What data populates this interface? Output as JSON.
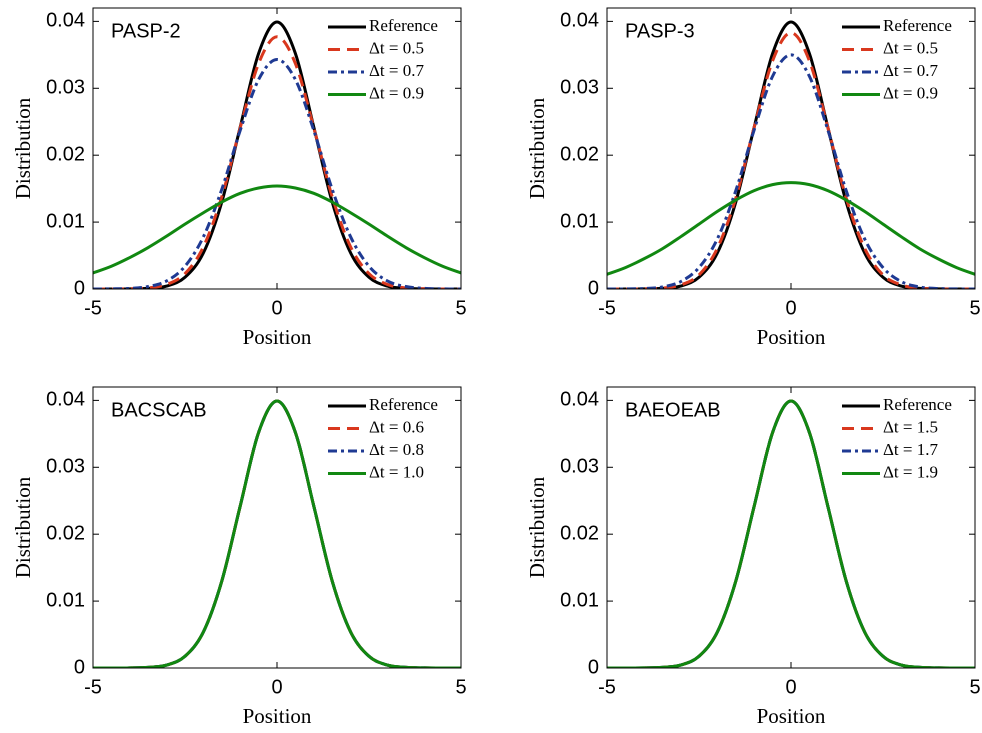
{
  "chart_data": [
    {
      "type": "line",
      "title": "PASP-2",
      "xlabel": "Position",
      "ylabel": "Distribution",
      "x": [
        -5,
        -4.5,
        -4,
        -3.5,
        -3,
        -2.5,
        -2,
        -1.5,
        -1,
        -0.5,
        0,
        0.5,
        1,
        1.5,
        2,
        2.5,
        3,
        3.5,
        4,
        4.5,
        5
      ],
      "xlim": [
        -5,
        5
      ],
      "ylim": [
        0,
        0.042
      ],
      "xticks": [
        -5,
        0,
        5
      ],
      "yticks": [
        0,
        0.01,
        0.02,
        0.03,
        0.04
      ],
      "series": [
        {
          "name": "Reference",
          "color": "#000000",
          "values": [
            0,
            0,
            1e-05,
            9e-05,
            0.00044,
            0.00175,
            0.0054,
            0.013,
            0.0242,
            0.0352,
            0.0399,
            0.0352,
            0.0242,
            0.013,
            0.0054,
            0.00175,
            0.00044,
            9e-05,
            1e-05,
            0,
            0
          ]
        },
        {
          "name": "Δt = 0.5",
          "color": "#d9381e",
          "values": [
            0,
            0,
            3e-05,
            0.00016,
            0.00068,
            0.0023,
            0.0063,
            0.0138,
            0.0241,
            0.0337,
            0.0377,
            0.0337,
            0.0241,
            0.0138,
            0.0063,
            0.0023,
            0.00068,
            0.00016,
            3e-05,
            0,
            0
          ]
        },
        {
          "name": "Δt = 0.7",
          "color": "#1f3a93",
          "values": [
            0,
            2e-05,
            9e-05,
            0.00037,
            0.0012,
            0.0034,
            0.0078,
            0.0149,
            0.0237,
            0.0313,
            0.0343,
            0.0313,
            0.0237,
            0.0149,
            0.0078,
            0.0034,
            0.0012,
            0.00037,
            9e-05,
            2e-05,
            0
          ]
        },
        {
          "name": "Δt = 0.9",
          "color": "#118811",
          "values": [
            0.0024,
            0.0034,
            0.0047,
            0.0062,
            0.0079,
            0.0097,
            0.0114,
            0.013,
            0.0143,
            0.0151,
            0.0154,
            0.0151,
            0.0143,
            0.013,
            0.0114,
            0.0097,
            0.0079,
            0.0062,
            0.0047,
            0.0034,
            0.0024
          ]
        }
      ]
    },
    {
      "type": "line",
      "title": "PASP-3",
      "xlabel": "Position",
      "ylabel": "Distribution",
      "x": [
        -5,
        -4.5,
        -4,
        -3.5,
        -3,
        -2.5,
        -2,
        -1.5,
        -1,
        -0.5,
        0,
        0.5,
        1,
        1.5,
        2,
        2.5,
        3,
        3.5,
        4,
        4.5,
        5
      ],
      "xlim": [
        -5,
        5
      ],
      "ylim": [
        0,
        0.042
      ],
      "xticks": [
        -5,
        0,
        5
      ],
      "yticks": [
        0,
        0.01,
        0.02,
        0.03,
        0.04
      ],
      "series": [
        {
          "name": "Reference",
          "color": "#000000",
          "values": [
            0,
            0,
            1e-05,
            9e-05,
            0.00044,
            0.00175,
            0.0054,
            0.013,
            0.0242,
            0.0352,
            0.0399,
            0.0352,
            0.0242,
            0.013,
            0.0054,
            0.00175,
            0.00044,
            9e-05,
            1e-05,
            0,
            0
          ]
        },
        {
          "name": "Δt = 0.5",
          "color": "#d9381e",
          "values": [
            0,
            0,
            2e-05,
            0.00013,
            0.0006,
            0.0021,
            0.0061,
            0.0136,
            0.0242,
            0.0341,
            0.0383,
            0.0341,
            0.0242,
            0.0136,
            0.0061,
            0.0021,
            0.0006,
            0.00013,
            2e-05,
            0,
            0
          ]
        },
        {
          "name": "Δt = 0.7",
          "color": "#1f3a93",
          "values": [
            0,
            1e-05,
            7e-05,
            0.0003,
            0.0011,
            0.0032,
            0.0075,
            0.0147,
            0.0238,
            0.0318,
            0.035,
            0.0318,
            0.0238,
            0.0147,
            0.0075,
            0.0032,
            0.0011,
            0.0003,
            7e-05,
            1e-05,
            0
          ]
        },
        {
          "name": "Δt = 0.9",
          "color": "#118811",
          "values": [
            0.0022,
            0.0032,
            0.0045,
            0.006,
            0.0078,
            0.0097,
            0.0116,
            0.0133,
            0.0147,
            0.0156,
            0.0159,
            0.0156,
            0.0147,
            0.0133,
            0.0116,
            0.0097,
            0.0078,
            0.006,
            0.0045,
            0.0032,
            0.0022
          ]
        }
      ]
    },
    {
      "type": "line",
      "title": "BACSCAB",
      "xlabel": "Position",
      "ylabel": "Distribution",
      "x": [
        -5,
        -4.5,
        -4,
        -3.5,
        -3,
        -2.5,
        -2,
        -1.5,
        -1,
        -0.5,
        0,
        0.5,
        1,
        1.5,
        2,
        2.5,
        3,
        3.5,
        4,
        4.5,
        5
      ],
      "xlim": [
        -5,
        5
      ],
      "ylim": [
        0,
        0.042
      ],
      "xticks": [
        -5,
        0,
        5
      ],
      "yticks": [
        0,
        0.01,
        0.02,
        0.03,
        0.04
      ],
      "series": [
        {
          "name": "Reference",
          "color": "#000000",
          "values": [
            0,
            0,
            1e-05,
            9e-05,
            0.00044,
            0.00175,
            0.0054,
            0.013,
            0.0242,
            0.0352,
            0.0399,
            0.0352,
            0.0242,
            0.013,
            0.0054,
            0.00175,
            0.00044,
            9e-05,
            1e-05,
            0,
            0
          ]
        },
        {
          "name": "Δt = 0.6",
          "color": "#d9381e",
          "values": [
            0,
            0,
            1e-05,
            9e-05,
            0.00044,
            0.00175,
            0.0054,
            0.013,
            0.0242,
            0.0352,
            0.0399,
            0.0352,
            0.0242,
            0.013,
            0.0054,
            0.00175,
            0.00044,
            9e-05,
            1e-05,
            0,
            0
          ]
        },
        {
          "name": "Δt = 0.8",
          "color": "#1f3a93",
          "values": [
            0,
            0,
            1e-05,
            9e-05,
            0.00044,
            0.00175,
            0.0054,
            0.013,
            0.0242,
            0.0352,
            0.0399,
            0.0352,
            0.0242,
            0.013,
            0.0054,
            0.00175,
            0.00044,
            9e-05,
            1e-05,
            0,
            0
          ]
        },
        {
          "name": "Δt = 1.0",
          "color": "#118811",
          "values": [
            0,
            0,
            1e-05,
            9e-05,
            0.00044,
            0.00175,
            0.0054,
            0.013,
            0.0242,
            0.0352,
            0.0399,
            0.0352,
            0.0242,
            0.013,
            0.0054,
            0.00175,
            0.00044,
            9e-05,
            1e-05,
            0,
            0
          ]
        }
      ]
    },
    {
      "type": "line",
      "title": "BAEOEAB",
      "xlabel": "Position",
      "ylabel": "Distribution",
      "x": [
        -5,
        -4.5,
        -4,
        -3.5,
        -3,
        -2.5,
        -2,
        -1.5,
        -1,
        -0.5,
        0,
        0.5,
        1,
        1.5,
        2,
        2.5,
        3,
        3.5,
        4,
        4.5,
        5
      ],
      "xlim": [
        -5,
        5
      ],
      "ylim": [
        0,
        0.042
      ],
      "xticks": [
        -5,
        0,
        5
      ],
      "yticks": [
        0,
        0.01,
        0.02,
        0.03,
        0.04
      ],
      "series": [
        {
          "name": "Reference",
          "color": "#000000",
          "values": [
            0,
            0,
            1e-05,
            9e-05,
            0.00044,
            0.00175,
            0.0054,
            0.013,
            0.0242,
            0.0352,
            0.0399,
            0.0352,
            0.0242,
            0.013,
            0.0054,
            0.00175,
            0.00044,
            9e-05,
            1e-05,
            0,
            0
          ]
        },
        {
          "name": "Δt = 1.5",
          "color": "#d9381e",
          "values": [
            0,
            0,
            1e-05,
            9e-05,
            0.00044,
            0.00175,
            0.0054,
            0.013,
            0.0242,
            0.0352,
            0.0399,
            0.0352,
            0.0242,
            0.013,
            0.0054,
            0.00175,
            0.00044,
            9e-05,
            1e-05,
            0,
            0
          ]
        },
        {
          "name": "Δt = 1.7",
          "color": "#1f3a93",
          "values": [
            0,
            0,
            1e-05,
            9e-05,
            0.00044,
            0.00175,
            0.0054,
            0.013,
            0.0242,
            0.0352,
            0.0399,
            0.0352,
            0.0242,
            0.013,
            0.0054,
            0.00175,
            0.00044,
            9e-05,
            1e-05,
            0,
            0
          ]
        },
        {
          "name": "Δt = 1.9",
          "color": "#118811",
          "values": [
            0,
            0,
            1e-05,
            9e-05,
            0.00044,
            0.00175,
            0.0054,
            0.013,
            0.0242,
            0.0352,
            0.0399,
            0.0352,
            0.0242,
            0.013,
            0.0054,
            0.00175,
            0.00044,
            9e-05,
            1e-05,
            0,
            0
          ]
        }
      ]
    }
  ]
}
